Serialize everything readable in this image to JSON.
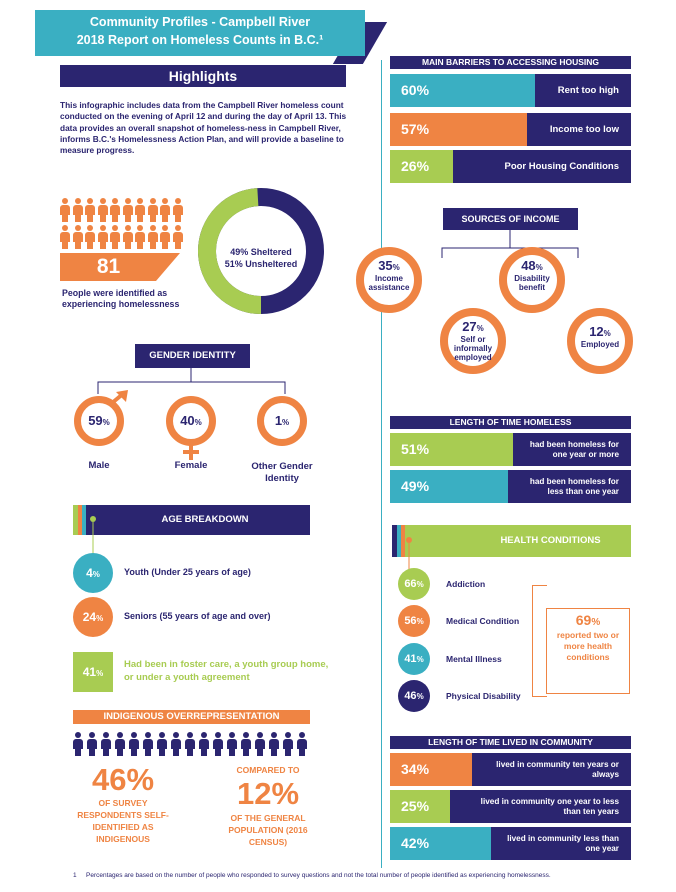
{
  "header": {
    "line1": "Community Profiles - Campbell River",
    "line2": "2018 Report on Homeless Counts in B.C.¹"
  },
  "highlights": {
    "title": "Highlights",
    "intro": "This infographic includes data from the Campbell River homeless count conducted on the evening of April 12 and during the day of April 13. This data provides an overall snapshot of homeless-ness in Campbell River, informs B.C.'s Homelessness Action Plan, and will provide a baseline to measure progress.",
    "count": "81",
    "count_caption": "People were identified as experiencing homelessness",
    "donut_line1": "49% Sheltered",
    "donut_line2": "51% Unsheltered",
    "sheltered_fraction": 0.49
  },
  "gender": {
    "title": "GENDER IDENTITY",
    "items": [
      {
        "value": "59",
        "pct": "%",
        "label": "Male"
      },
      {
        "value": "40",
        "pct": "%",
        "label": "Female"
      },
      {
        "value": "1",
        "pct": "%",
        "label": "Other Gender Identity"
      }
    ]
  },
  "age": {
    "title": "AGE BREAKDOWN",
    "youth_value": "4",
    "youth_label": "Youth (Under 25 years of age)",
    "senior_value": "24",
    "senior_label": "Seniors (55 years of age and over)",
    "foster_value": "41",
    "foster_label": "Had been in foster care, a youth group home, or under a youth agreement",
    "pct": "%"
  },
  "indigenous": {
    "title": "INDIGENOUS OVERREPRESENTATION",
    "pct": "46%",
    "text": "OF SURVEY RESPONDENTS SELF-IDENTIFIED AS INDIGENOUS",
    "compared": "COMPARED TO",
    "general_pct": "12%",
    "general_text": "OF THE GENERAL POPULATION (2016 CENSUS)"
  },
  "barriers": {
    "title": "MAIN BARRIERS TO ACCESSING HOUSING",
    "items": [
      {
        "value": "60%",
        "label": "Rent too high",
        "fraction": 0.6,
        "color": "#3aafc2"
      },
      {
        "value": "57%",
        "label": "Income too low",
        "fraction": 0.57,
        "color": "#ef8443"
      },
      {
        "value": "26%",
        "label": "Poor Housing Conditions",
        "fraction": 0.26,
        "color": "#a8cc52"
      }
    ]
  },
  "income": {
    "title": "SOURCES OF INCOME",
    "items": [
      {
        "value": "35",
        "label": "Income assistance"
      },
      {
        "value": "27",
        "label": "Self or informally employed"
      },
      {
        "value": "48",
        "label": "Disability benefit"
      },
      {
        "value": "12",
        "label": "Employed"
      }
    ],
    "pct": "%"
  },
  "time_homeless": {
    "title": "LENGTH OF TIME HOMELESS",
    "items": [
      {
        "value": "51%",
        "label": "had been homeless for one year or more",
        "fraction": 0.51,
        "color": "#a8cc52"
      },
      {
        "value": "49%",
        "label": "had been homeless for less than one year",
        "fraction": 0.49,
        "color": "#3aafc2"
      }
    ]
  },
  "health": {
    "title": "HEALTH CONDITIONS",
    "items": [
      {
        "value": "66",
        "label": "Addiction",
        "color": "#a8cc52"
      },
      {
        "value": "56",
        "label": "Medical Condition",
        "color": "#ef8443"
      },
      {
        "value": "41",
        "label": "Mental Illness",
        "color": "#3aafc2"
      },
      {
        "value": "46",
        "label": "Physical Disability",
        "color": "#2b2570"
      }
    ],
    "pct": "%",
    "two_or_more_pct": "69",
    "two_or_more_text": "reported two or more health conditions"
  },
  "lived": {
    "title": "LENGTH OF TIME LIVED IN COMMUNITY",
    "items": [
      {
        "value": "34%",
        "label": "lived in community ten years or always",
        "fraction": 0.34,
        "color": "#ef8443"
      },
      {
        "value": "25%",
        "label": "lived in community one year to less than ten years",
        "fraction": 0.25,
        "color": "#a8cc52"
      },
      {
        "value": "42%",
        "label": "lived in community less than one year",
        "fraction": 0.42,
        "color": "#3aafc2"
      }
    ]
  },
  "footnote": {
    "num": "1",
    "text": "Percentages are based on the number of people who responded to survey questions and not the total number of people identified as experiencing homelessness."
  }
}
